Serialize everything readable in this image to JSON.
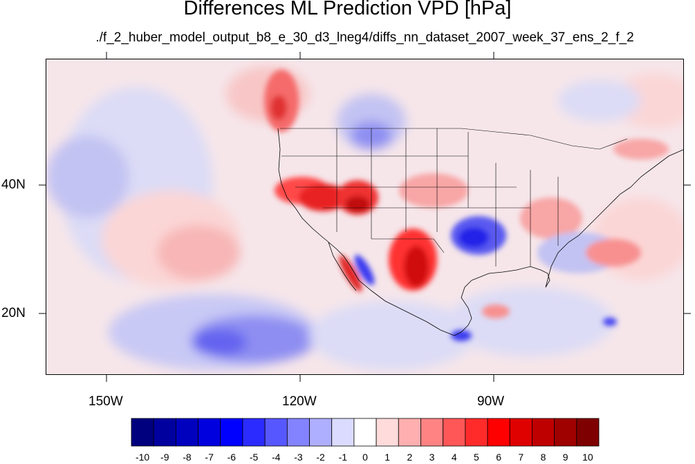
{
  "title": "Differences ML Prediction VPD [hPa]",
  "subtitle": "./f_2_huber_model_output_b8_e_30_d3_lneg4/diffs_nn_dataset_2007_week_37_ens_2_f_2",
  "axes": {
    "lon_labels": [
      "150W",
      "120W",
      "90W"
    ],
    "lat_labels": [
      "40N",
      "20N"
    ]
  },
  "colorbar": {
    "labels": [
      "-10",
      "-9",
      "-8",
      "-7",
      "-6",
      "-5",
      "-4",
      "-3",
      "-2",
      "-1",
      "0",
      "1",
      "2",
      "3",
      "4",
      "5",
      "6",
      "7",
      "8",
      "9",
      "10"
    ],
    "colors": [
      "#00007f",
      "#00009f",
      "#0000bf",
      "#0000df",
      "#0000ff",
      "#2b2bff",
      "#5757ff",
      "#8383ff",
      "#afafff",
      "#dbdbff",
      "#ffffff",
      "#ffdbdb",
      "#ffafaf",
      "#ff8383",
      "#ff5757",
      "#ff2b2b",
      "#ff0000",
      "#df0000",
      "#bf0000",
      "#9f0000",
      "#7f0000"
    ]
  }
}
